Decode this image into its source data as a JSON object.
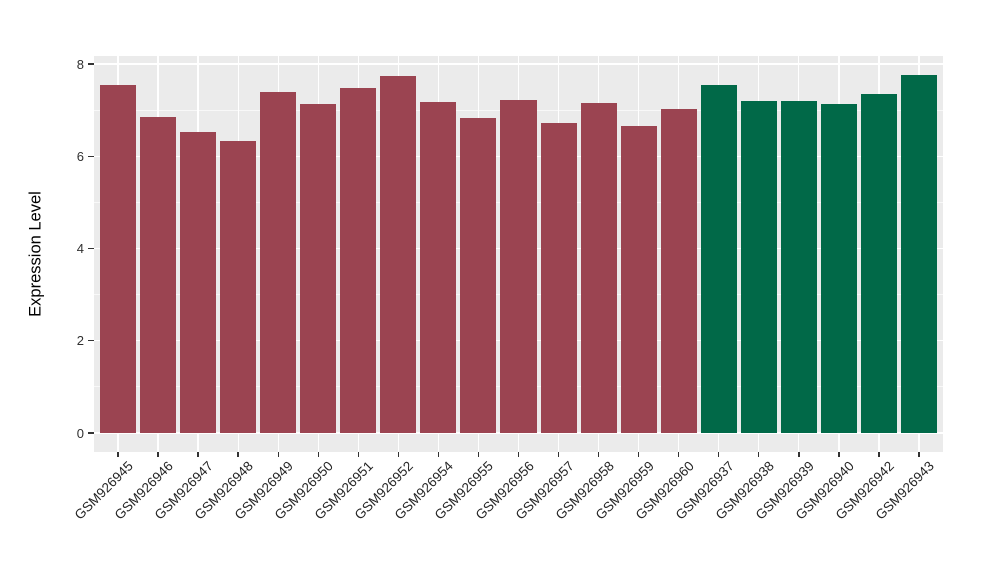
{
  "chart_data": {
    "type": "bar",
    "title": "",
    "xlabel": "",
    "ylabel": "Expression Level",
    "ylim": [
      0,
      8
    ],
    "yticks": [
      0,
      2,
      4,
      6,
      8
    ],
    "yticks_minor": [
      1,
      3,
      5,
      7
    ],
    "grid": "on",
    "legend_position": "none",
    "panel_background": "#EBEBEB",
    "grid_color": "#FFFFFF",
    "categories": [
      "GSM926945",
      "GSM926946",
      "GSM926947",
      "GSM926948",
      "GSM926949",
      "GSM926950",
      "GSM926951",
      "GSM926952",
      "GSM926954",
      "GSM926955",
      "GSM926956",
      "GSM926957",
      "GSM926958",
      "GSM926959",
      "GSM926960",
      "GSM926937",
      "GSM926938",
      "GSM926939",
      "GSM926940",
      "GSM926942",
      "GSM926943"
    ],
    "values": [
      7.55,
      6.86,
      6.53,
      6.34,
      7.39,
      7.13,
      7.47,
      7.74,
      7.18,
      6.83,
      7.21,
      6.73,
      7.15,
      6.65,
      7.02,
      7.55,
      7.19,
      7.2,
      7.13,
      7.34,
      7.77
    ],
    "groups": [
      "group1",
      "group1",
      "group1",
      "group1",
      "group1",
      "group1",
      "group1",
      "group1",
      "group1",
      "group1",
      "group1",
      "group1",
      "group1",
      "group1",
      "group1",
      "group2",
      "group2",
      "group2",
      "group2",
      "group2",
      "group2"
    ],
    "group_colors": {
      "group1": "#9B4451",
      "group2": "#016948"
    },
    "axis_text_color": "#262626",
    "tick_color": "#333333"
  }
}
